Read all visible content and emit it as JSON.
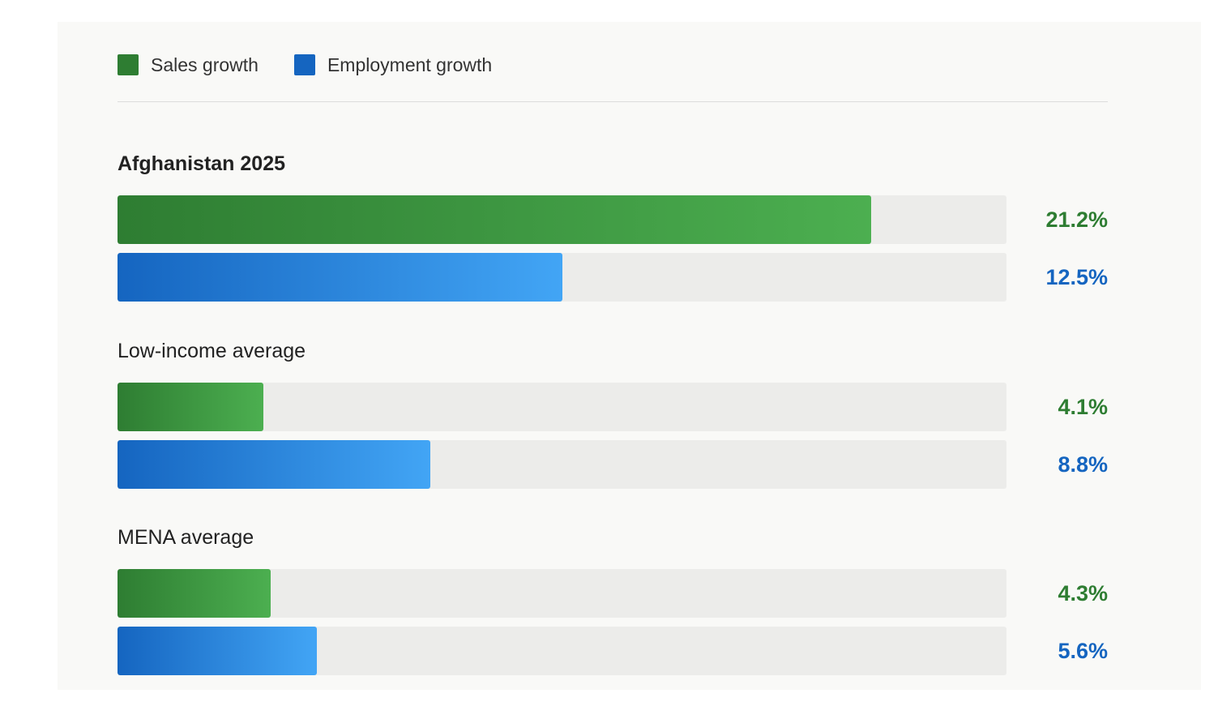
{
  "legend": {
    "sales_label": "Sales growth",
    "employment_label": "Employment growth"
  },
  "colors": {
    "sales": "#2e7d32",
    "sales_light": "#4caf50",
    "employment": "#1565c0",
    "employment_light": "#42a5f5",
    "track": "#ececea"
  },
  "chart_data": {
    "type": "bar",
    "orientation": "horizontal",
    "xlim": [
      0,
      25
    ],
    "categories": [
      "Afghanistan 2025",
      "Low-income average",
      "MENA average"
    ],
    "series": [
      {
        "name": "Sales growth",
        "values": [
          21.2,
          4.1,
          4.3
        ]
      },
      {
        "name": "Employment growth",
        "values": [
          12.5,
          8.8,
          5.6
        ]
      }
    ],
    "value_labels": {
      "sales": [
        "21.2%",
        "4.1%",
        "4.3%"
      ],
      "employment": [
        "12.5%",
        "8.8%",
        "5.6%"
      ]
    },
    "legend_position": "top-left",
    "grid": false
  }
}
